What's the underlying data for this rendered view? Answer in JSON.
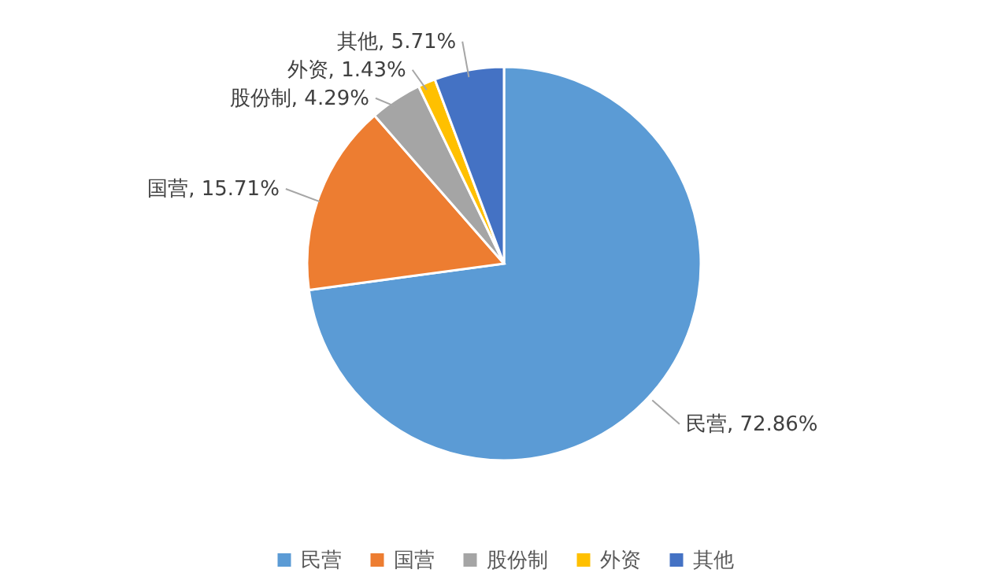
{
  "chart_data": {
    "type": "pie",
    "categories": [
      "民营",
      "国营",
      "股份制",
      "外资",
      "其他"
    ],
    "values": [
      72.86,
      15.71,
      4.29,
      1.43,
      5.71
    ],
    "colors": [
      "#5b9bd5",
      "#ed7d31",
      "#a5a5a5",
      "#ffc000",
      "#4472c4"
    ],
    "value_labels": [
      "民营, 72.86%",
      "国营, 15.71%",
      "股份制, 4.29%",
      "外资, 1.43%",
      "其他, 5.71%"
    ],
    "legend": "bottom"
  }
}
